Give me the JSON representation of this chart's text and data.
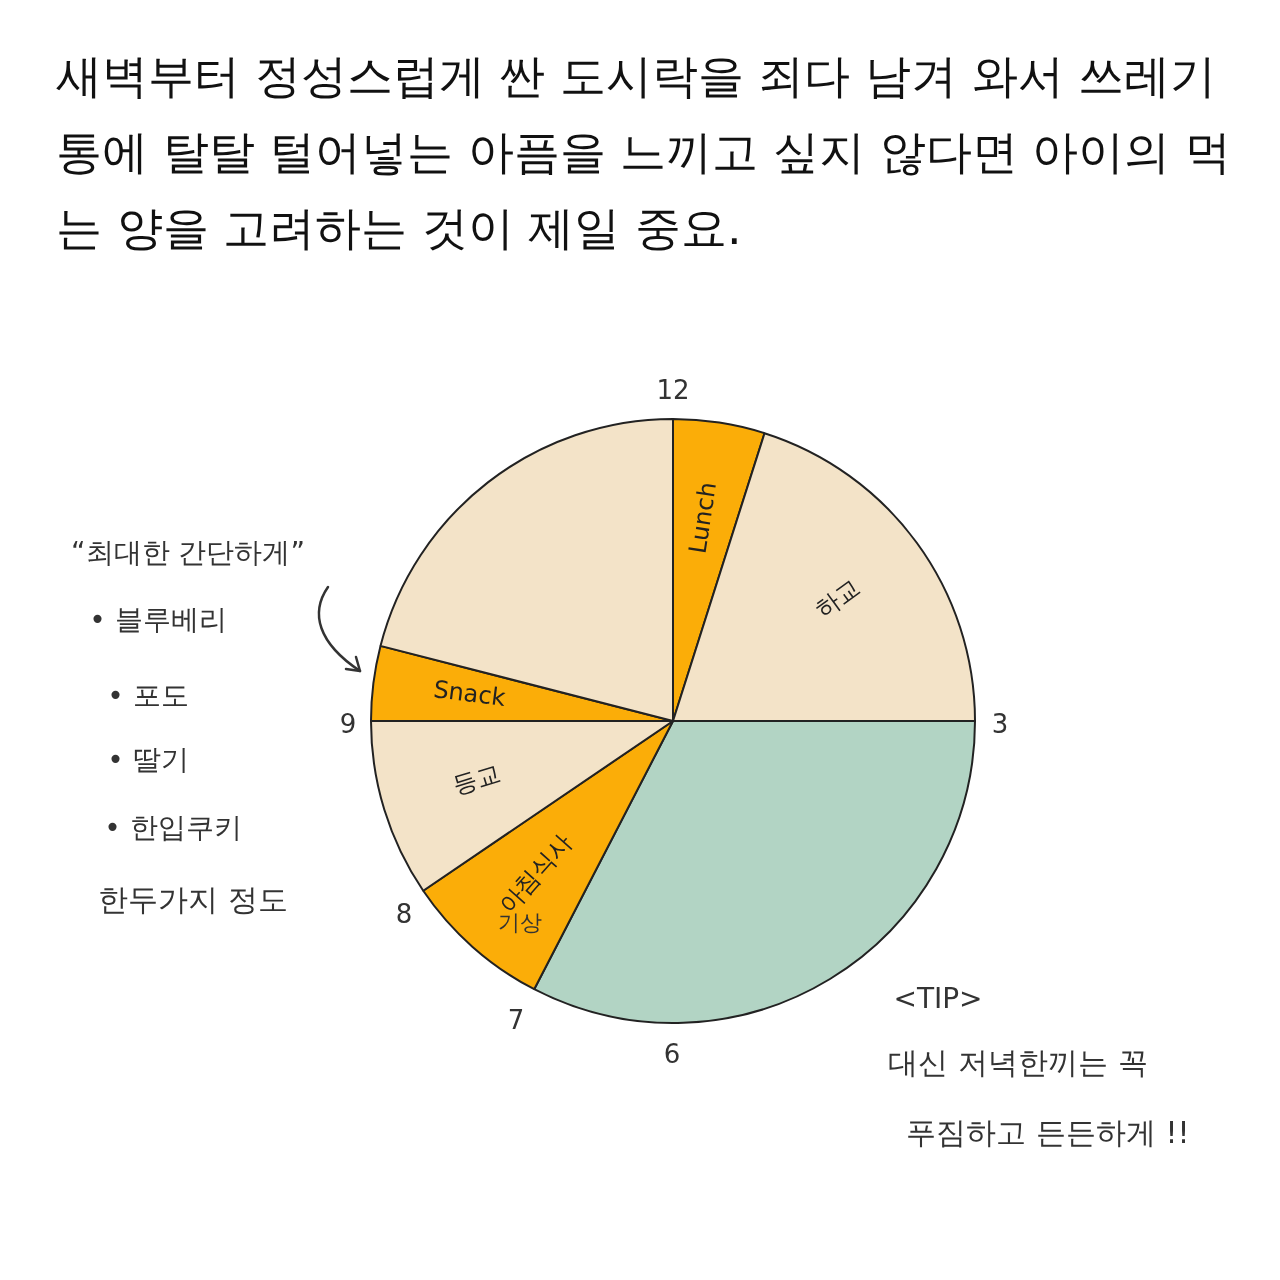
{
  "chart_data": {
    "type": "pie",
    "title": "새벽부터 정성스럽게 싼 도시락을 죄다 남겨 와서 쓰레기통에 탈탈 털어넣는 아픔을 느끼고 싶지 않다면 아이의 먹는 양을 고려하는 것이 제일 중요.",
    "categories": [
      "Lunch",
      "하교",
      null,
      "아침식사",
      "등교",
      "Snack",
      null
    ],
    "values": [
      4.9,
      20.1,
      32.6,
      7.9,
      9.5,
      4.0,
      21.0
    ],
    "colors": [
      "#fbad08",
      "#f3e3c8",
      "#b2d4c4",
      "#fbad08",
      "#f3e3c8",
      "#fbad08",
      "#f3e3c8"
    ],
    "legend": false,
    "annotations": [
      "12",
      "3",
      "6",
      "7",
      "8",
      "9",
      "기상",
      "“최대한 간단하게”",
      "• 블루베리",
      "• 포도",
      "• 딸기",
      "• 한입쿠키",
      "한두가지 정도",
      "<TIP>",
      "대신 저녁한끼는 꼭",
      "푸짐하고 든든하게 !!"
    ]
  }
}
